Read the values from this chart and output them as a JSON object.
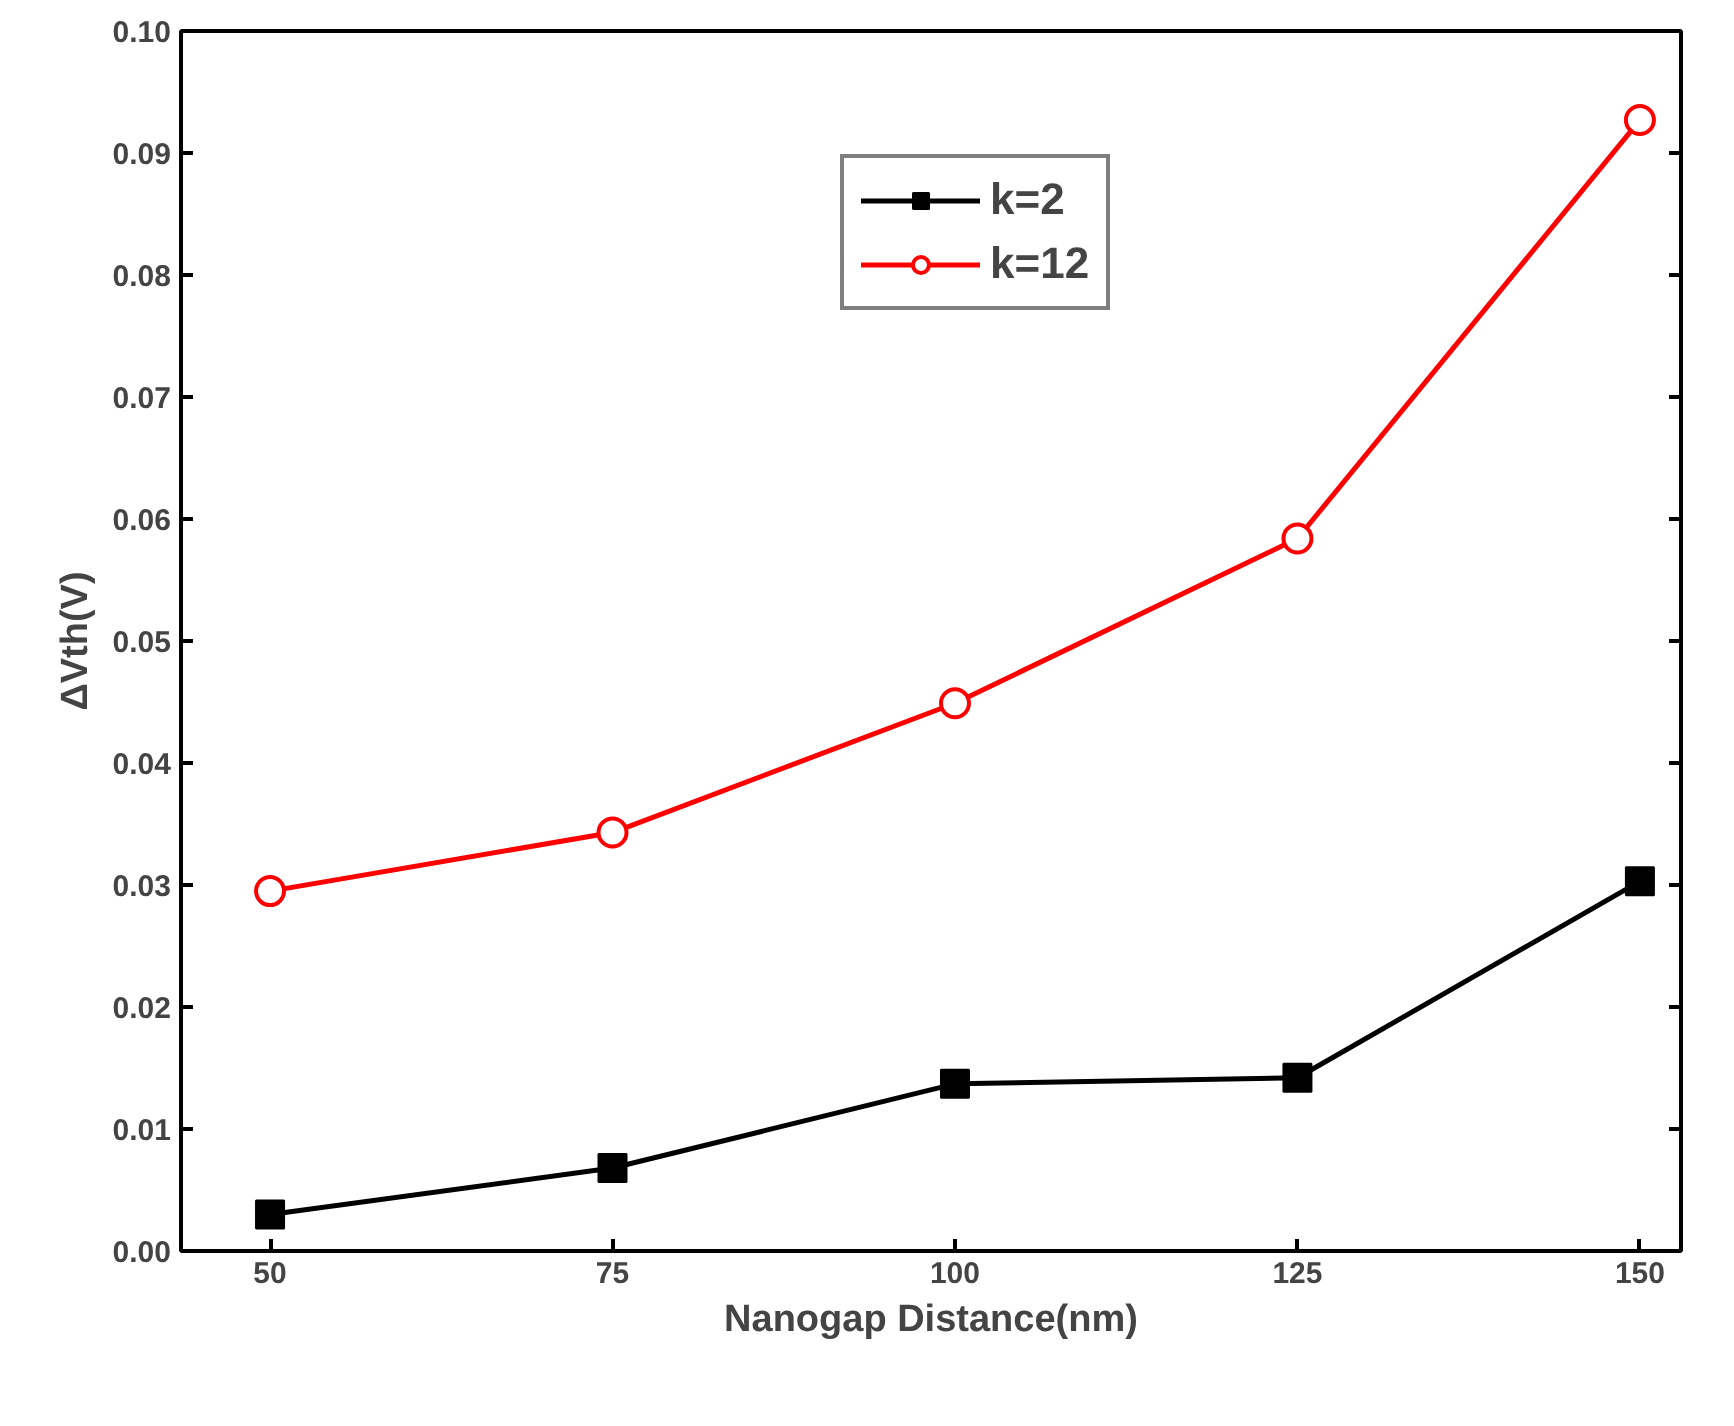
{
  "chart_data": {
    "type": "line",
    "xlabel": "Nanogap Distance(nm)",
    "ylabel": "ΔVth(V)",
    "x": [
      50,
      75,
      100,
      125,
      150
    ],
    "series": [
      {
        "name": "k=2",
        "color": "#000000",
        "marker": "square",
        "values": [
          0.003,
          0.0068,
          0.0137,
          0.0142,
          0.0303
        ]
      },
      {
        "name": "k=12",
        "color": "#ff0000",
        "marker": "circle",
        "values": [
          0.0295,
          0.0343,
          0.0449,
          0.0584,
          0.0927
        ]
      }
    ],
    "xlim": [
      43.5,
      153
    ],
    "ylim": [
      0,
      0.1
    ],
    "xticks": [
      50,
      75,
      100,
      125,
      150
    ],
    "yticks": [
      {
        "value": 0,
        "label": "0.00"
      },
      {
        "value": 0.01,
        "label": "0.01"
      },
      {
        "value": 0.02,
        "label": "0.02"
      },
      {
        "value": 0.03,
        "label": "0.03"
      },
      {
        "value": 0.04,
        "label": "0.04"
      },
      {
        "value": 0.05,
        "label": "0.05"
      },
      {
        "value": 0.06,
        "label": "0.06"
      },
      {
        "value": 0.07,
        "label": "0.07"
      },
      {
        "value": 0.08,
        "label": "0.08"
      },
      {
        "value": 0.09,
        "label": "0.09"
      },
      {
        "value": 0.1,
        "label": "0.10"
      }
    ],
    "grid": false,
    "legend": "top",
    "line_style": "solid"
  }
}
